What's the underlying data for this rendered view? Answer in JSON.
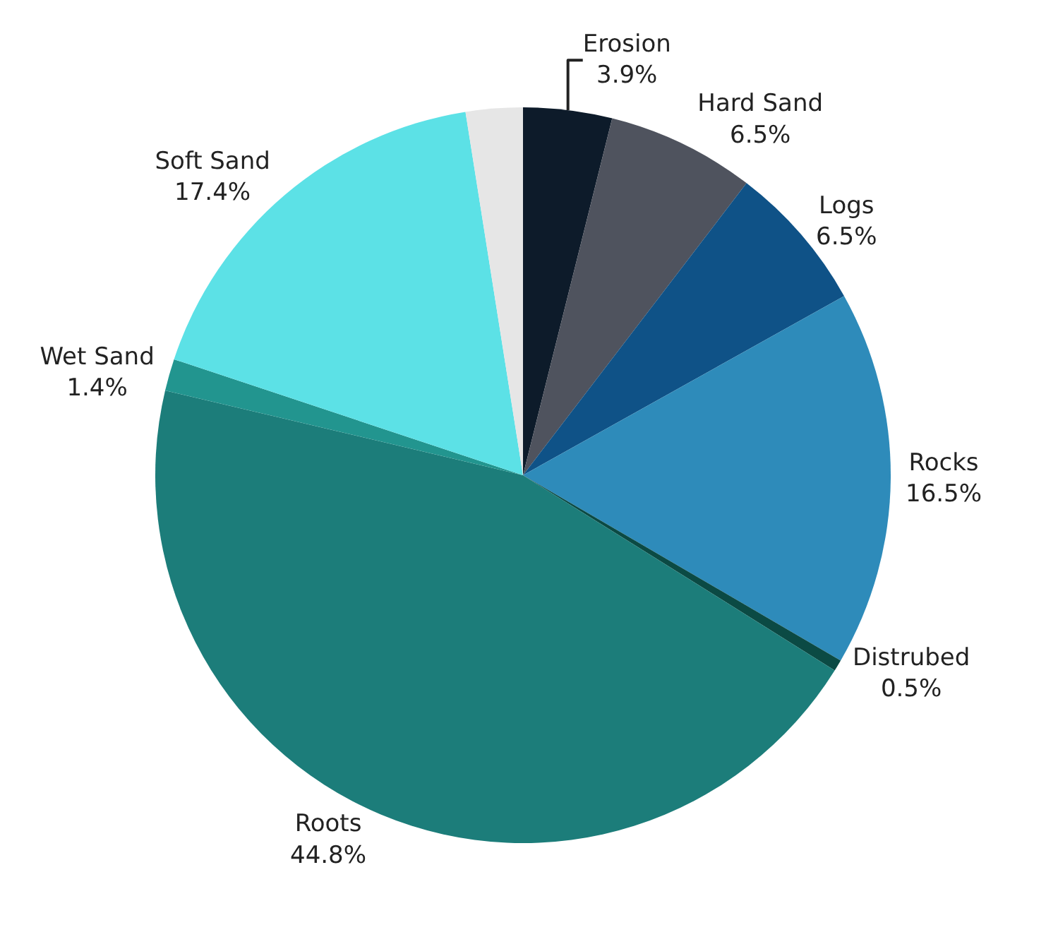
{
  "chart_data": {
    "type": "pie",
    "categories": [
      "Erosion",
      "Hard Sand",
      "Logs",
      "Rocks",
      "Distrubed",
      "Roots",
      "Wet Sand",
      "Soft Sand",
      null
    ],
    "values": [
      3.9,
      6.5,
      6.5,
      16.5,
      0.5,
      44.8,
      1.4,
      17.4,
      2.5
    ],
    "value_labels": [
      "3.9%",
      "6.5%",
      "6.5%",
      "16.5%",
      "0.5%",
      "44.8%",
      "1.4%",
      "17.4%",
      null
    ],
    "colors": [
      "#0d1b2a",
      "#4f535e",
      "#0f5287",
      "#2e8bba",
      "#0b4a44",
      "#1c7d7a",
      "#22958f",
      "#5ce1e6",
      "#e6e6e6"
    ],
    "legend": false
  }
}
